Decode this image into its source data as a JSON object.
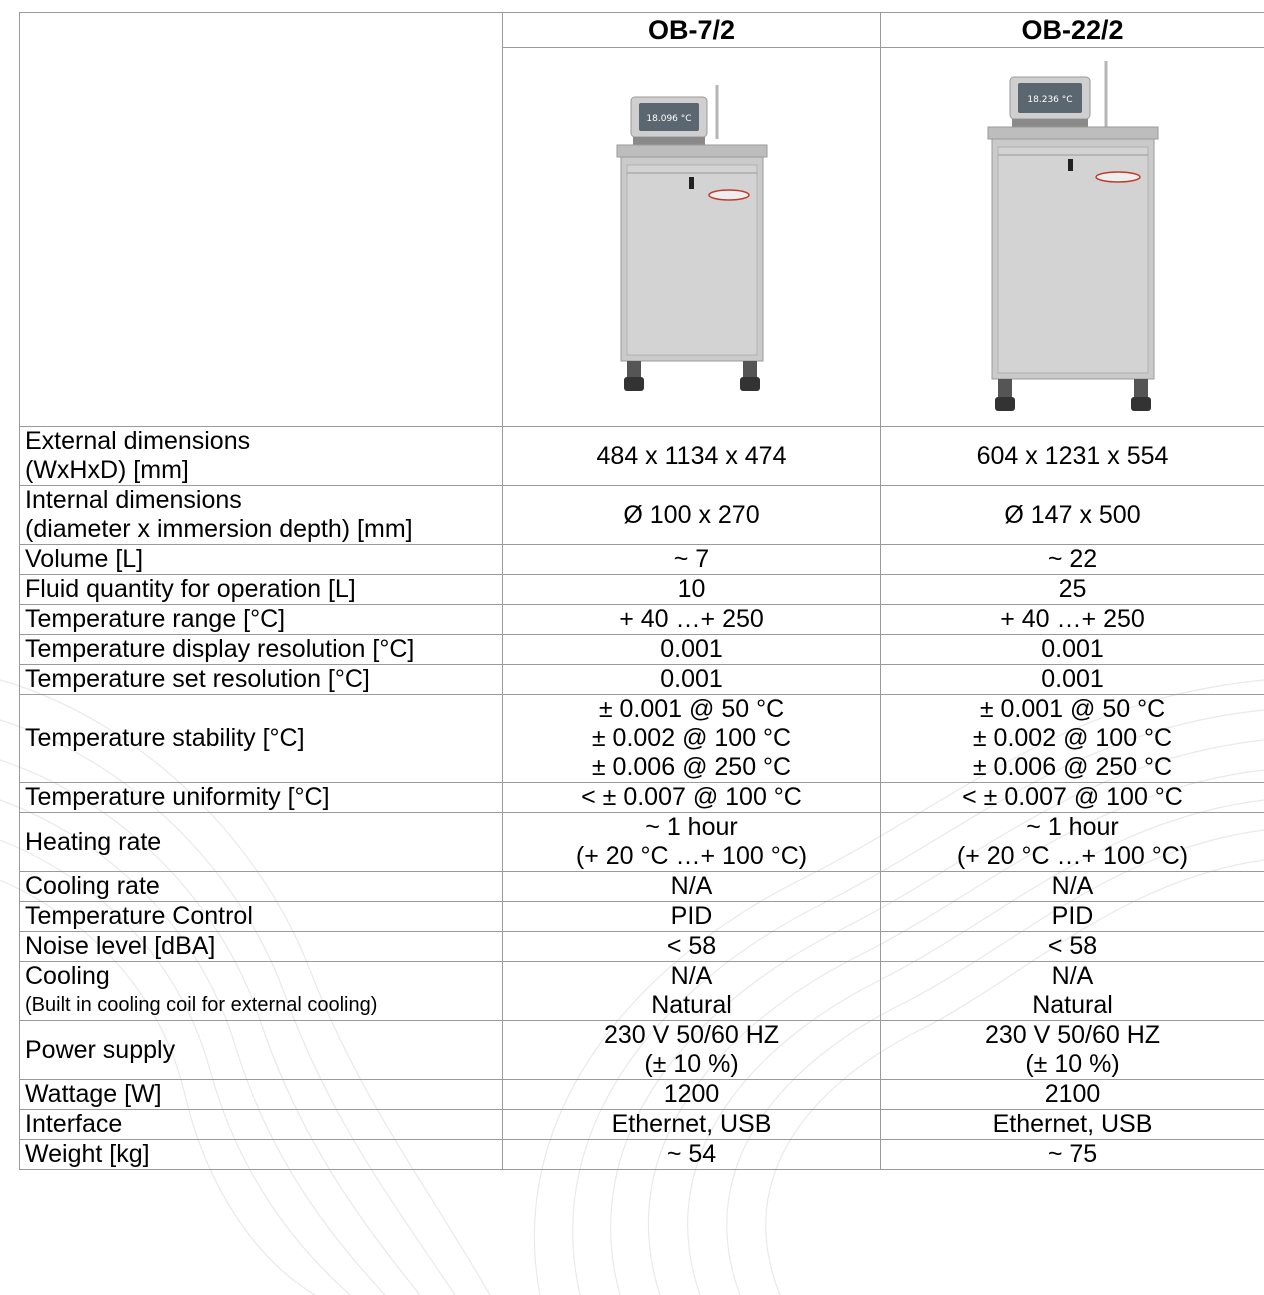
{
  "header": {
    "model_1": "OB-7/2",
    "model_2": "OB-22/2"
  },
  "product_images": {
    "model_1_icon": "bath-unit-small-icon",
    "model_2_icon": "bath-unit-large-icon",
    "display_1": "18.096 °C",
    "display_2": "18.236 °C",
    "brand_badge_color": "#c0392b",
    "body_color": "#c9c9c9"
  },
  "rows": [
    {
      "label": [
        "External dimensions",
        "(WxHxD) [mm]"
      ],
      "v1": [
        "484 x 1134 x 474"
      ],
      "v2": [
        "604 x 1231 x 554"
      ]
    },
    {
      "label": [
        "Internal dimensions",
        "(diameter x immersion depth) [mm]"
      ],
      "v1": [
        "Ø 100 x 270"
      ],
      "v2": [
        "Ø 147 x 500"
      ]
    },
    {
      "label": [
        "Volume [L]"
      ],
      "v1": [
        "~ 7"
      ],
      "v2": [
        "~ 22"
      ]
    },
    {
      "label": [
        "Fluid quantity for operation [L]"
      ],
      "v1": [
        "10"
      ],
      "v2": [
        "25"
      ]
    },
    {
      "label": [
        "Temperature range [°C]"
      ],
      "v1": [
        "+ 40 …+ 250"
      ],
      "v2": [
        "+ 40 …+ 250"
      ]
    },
    {
      "label": [
        "Temperature display resolution [°C]"
      ],
      "v1": [
        "0.001"
      ],
      "v2": [
        "0.001"
      ]
    },
    {
      "label": [
        "Temperature set resolution [°C]"
      ],
      "v1": [
        "0.001"
      ],
      "v2": [
        "0.001"
      ]
    },
    {
      "label": [
        "Temperature stability [°C]"
      ],
      "v1": [
        "± 0.001 @ 50 °C",
        "± 0.002 @ 100 °C",
        "± 0.006 @ 250 °C"
      ],
      "v2": [
        "± 0.001 @ 50 °C",
        "± 0.002 @ 100 °C",
        "± 0.006 @ 250 °C"
      ]
    },
    {
      "label": [
        "Temperature uniformity [°C]"
      ],
      "v1": [
        "< ± 0.007 @ 100 °C"
      ],
      "v2": [
        "< ± 0.007 @ 100 °C"
      ]
    },
    {
      "label": [
        "Heating rate"
      ],
      "v1": [
        "~ 1 hour",
        "(+ 20 °C …+ 100 °C)"
      ],
      "v2": [
        "~ 1 hour",
        "(+ 20 °C …+ 100 °C)"
      ]
    },
    {
      "label": [
        "Cooling rate"
      ],
      "v1": [
        "N/A"
      ],
      "v2": [
        "N/A"
      ]
    },
    {
      "label": [
        "Temperature Control"
      ],
      "v1": [
        "PID"
      ],
      "v2": [
        "PID"
      ]
    },
    {
      "label": [
        "Noise level [dBA]"
      ],
      "v1": [
        "< 58"
      ],
      "v2": [
        "< 58"
      ]
    },
    {
      "label": [
        "Cooling",
        "(Built in cooling coil for external cooling)"
      ],
      "v1": [
        "N/A",
        "Natural"
      ],
      "v2": [
        "N/A",
        "Natural"
      ]
    },
    {
      "label": [
        "Power supply"
      ],
      "v1": [
        "230 V 50/60 HZ",
        "(± 10 %)"
      ],
      "v2": [
        "230 V 50/60 HZ",
        "(± 10 %)"
      ]
    },
    {
      "label": [
        "Wattage [W]"
      ],
      "v1": [
        "1200"
      ],
      "v2": [
        "2100"
      ]
    },
    {
      "label": [
        "Interface"
      ],
      "v1": [
        "Ethernet, USB"
      ],
      "v2": [
        "Ethernet, USB"
      ]
    },
    {
      "label": [
        "Weight [kg]"
      ],
      "v1": [
        "~ 54"
      ],
      "v2": [
        "~ 75"
      ]
    }
  ]
}
